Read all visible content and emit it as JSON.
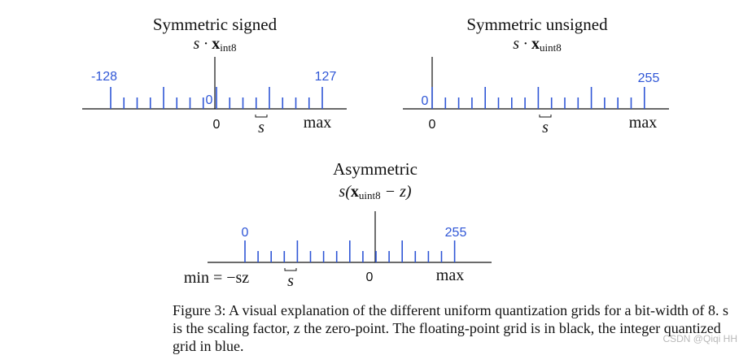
{
  "panels": [
    {
      "title": "Symmetric signed",
      "formula_prefix": "s · ",
      "formula_bold": "x",
      "formula_sub": "int8",
      "formula_suffix": "",
      "left_label": "-128",
      "right_label": "127",
      "center_label": "0",
      "float_zero": "0",
      "scale_label": "s",
      "min_label": "",
      "max_label": "max"
    },
    {
      "title": "Symmetric unsigned",
      "formula_prefix": "s · ",
      "formula_bold": "x",
      "formula_sub": "uint8",
      "formula_suffix": "",
      "left_label": "0",
      "right_label": "255",
      "center_label": "",
      "float_zero": "0",
      "scale_label": "s",
      "min_label": "",
      "max_label": "max"
    },
    {
      "title": "Asymmetric",
      "formula_prefix": "s(",
      "formula_bold": "x",
      "formula_sub": "uint8",
      "formula_suffix": " − z)",
      "left_label": "0",
      "right_label": "255",
      "center_label": "",
      "float_zero": "0",
      "scale_label": "s",
      "min_label": "min = −sz",
      "max_label": "max"
    }
  ],
  "caption": {
    "label": "Figure 3:",
    "text": "A visual explanation of the different uniform quantization grids for a bit-width of 8. s is the scaling factor, z the zero-point. The floating-point grid is in black, the integer quantized grid in blue."
  },
  "watermark": "CSDN @Qiqi HH",
  "colors": {
    "integer_grid": "#2f56d6",
    "float_grid": "#111111"
  }
}
